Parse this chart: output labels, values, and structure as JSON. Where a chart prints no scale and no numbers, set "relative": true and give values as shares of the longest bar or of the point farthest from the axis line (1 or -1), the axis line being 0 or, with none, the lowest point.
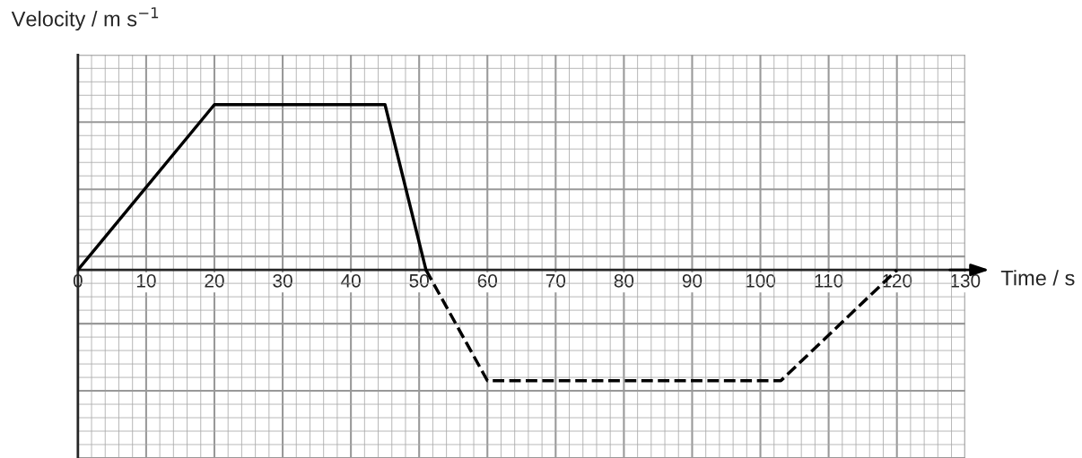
{
  "chart_data": {
    "type": "line",
    "relative": true,
    "ylabel": "Velocity / m s$^{−1}$",
    "xlabel": "Time / s",
    "xlim": [
      0,
      130
    ],
    "xticks": [
      0,
      10,
      20,
      30,
      40,
      50,
      60,
      70,
      80,
      90,
      100,
      110,
      120,
      130
    ],
    "grid": true,
    "tick_labels": "x",
    "marker": "none",
    "series": [
      {
        "color": "#000000",
        "line_style": "solid",
        "x": [
          0,
          20,
          45,
          51
        ],
        "values": [
          0,
          1,
          1,
          0
        ]
      },
      {
        "color": "#000000",
        "line_style": "dashed",
        "x": [
          51,
          60,
          103,
          120
        ],
        "values": [
          0,
          -0.67,
          -0.67,
          0
        ]
      }
    ]
  }
}
